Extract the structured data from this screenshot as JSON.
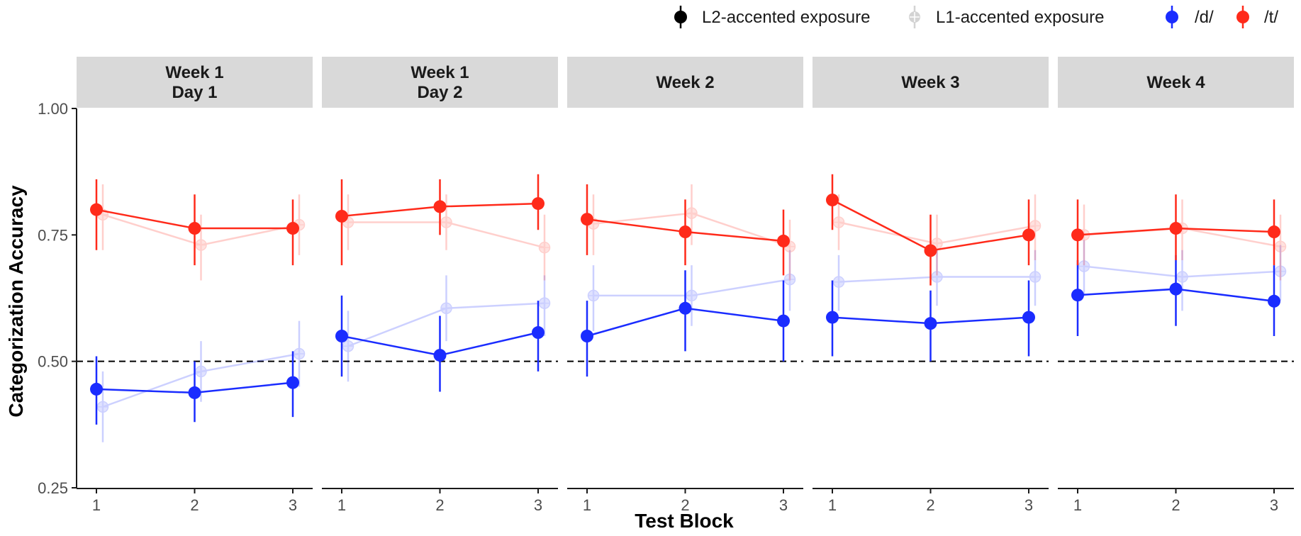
{
  "chart_data": {
    "type": "line",
    "xlabel": "Test Block",
    "ylabel": "Categorization Accuracy",
    "ylim": [
      0.25,
      1.0
    ],
    "yticks": [
      "0.25",
      "0.50",
      "0.75",
      "1.00"
    ],
    "xticks": [
      "1",
      "2",
      "3"
    ],
    "reference_line": 0.5,
    "legend": {
      "position": "top-right",
      "exposure": [
        {
          "label": "L2-accented exposure",
          "color": "#000000",
          "opacity": 1.0
        },
        {
          "label": "L1-accented exposure",
          "color": "#9e9e9e",
          "opacity": 0.45
        }
      ],
      "phoneme": [
        {
          "label": "/d/",
          "color": "#1a2cff"
        },
        {
          "label": "/t/",
          "color": "#ff2a1a"
        }
      ]
    },
    "colors": {
      "d": "#1a2cff",
      "t": "#ff2a1a",
      "strip_bg": "#d9d9d9",
      "axis": "#1a1a1a"
    },
    "panels": [
      {
        "title_lines": [
          "Week 1",
          "Day 1"
        ],
        "series": [
          {
            "exposure": "L1",
            "phoneme": "d",
            "values": [
              0.41,
              0.48,
              0.515
            ],
            "ci": [
              [
                0.34,
                0.48
              ],
              [
                0.42,
                0.54
              ],
              [
                0.45,
                0.58
              ]
            ]
          },
          {
            "exposure": "L1",
            "phoneme": "t",
            "values": [
              0.79,
              0.73,
              0.77
            ],
            "ci": [
              [
                0.72,
                0.85
              ],
              [
                0.66,
                0.79
              ],
              [
                0.71,
                0.83
              ]
            ]
          },
          {
            "exposure": "L2",
            "phoneme": "d",
            "values": [
              0.445,
              0.438,
              0.458
            ],
            "ci": [
              [
                0.375,
                0.51
              ],
              [
                0.38,
                0.5
              ],
              [
                0.39,
                0.52
              ]
            ]
          },
          {
            "exposure": "L2",
            "phoneme": "t",
            "values": [
              0.8,
              0.763,
              0.763
            ],
            "ci": [
              [
                0.72,
                0.86
              ],
              [
                0.69,
                0.83
              ],
              [
                0.69,
                0.82
              ]
            ]
          }
        ]
      },
      {
        "title_lines": [
          "Week 1",
          "Day 2"
        ],
        "series": [
          {
            "exposure": "L1",
            "phoneme": "d",
            "values": [
              0.53,
              0.605,
              0.615
            ],
            "ci": [
              [
                0.46,
                0.6
              ],
              [
                0.54,
                0.67
              ],
              [
                0.55,
                0.67
              ]
            ]
          },
          {
            "exposure": "L1",
            "phoneme": "t",
            "values": [
              0.775,
              0.775,
              0.725
            ],
            "ci": [
              [
                0.72,
                0.83
              ],
              [
                0.72,
                0.83
              ],
              [
                0.66,
                0.79
              ]
            ]
          },
          {
            "exposure": "L2",
            "phoneme": "d",
            "values": [
              0.55,
              0.512,
              0.557
            ],
            "ci": [
              [
                0.47,
                0.63
              ],
              [
                0.44,
                0.59
              ],
              [
                0.48,
                0.62
              ]
            ]
          },
          {
            "exposure": "L2",
            "phoneme": "t",
            "values": [
              0.787,
              0.806,
              0.812
            ],
            "ci": [
              [
                0.69,
                0.86
              ],
              [
                0.75,
                0.86
              ],
              [
                0.76,
                0.87
              ]
            ]
          }
        ]
      },
      {
        "title_lines": [
          "Week 2"
        ],
        "series": [
          {
            "exposure": "L1",
            "phoneme": "d",
            "values": [
              0.63,
              0.63,
              0.662
            ],
            "ci": [
              [
                0.56,
                0.69
              ],
              [
                0.57,
                0.69
              ],
              [
                0.6,
                0.72
              ]
            ]
          },
          {
            "exposure": "L1",
            "phoneme": "t",
            "values": [
              0.772,
              0.793,
              0.727
            ],
            "ci": [
              [
                0.71,
                0.83
              ],
              [
                0.73,
                0.85
              ],
              [
                0.66,
                0.78
              ]
            ]
          },
          {
            "exposure": "L2",
            "phoneme": "d",
            "values": [
              0.55,
              0.605,
              0.58
            ],
            "ci": [
              [
                0.47,
                0.62
              ],
              [
                0.52,
                0.68
              ],
              [
                0.5,
                0.66
              ]
            ]
          },
          {
            "exposure": "L2",
            "phoneme": "t",
            "values": [
              0.781,
              0.756,
              0.738
            ],
            "ci": [
              [
                0.71,
                0.85
              ],
              [
                0.69,
                0.82
              ],
              [
                0.67,
                0.8
              ]
            ]
          }
        ]
      },
      {
        "title_lines": [
          "Week 3"
        ],
        "series": [
          {
            "exposure": "L1",
            "phoneme": "d",
            "values": [
              0.657,
              0.667,
              0.667
            ],
            "ci": [
              [
                0.6,
                0.71
              ],
              [
                0.61,
                0.72
              ],
              [
                0.61,
                0.72
              ]
            ]
          },
          {
            "exposure": "L1",
            "phoneme": "t",
            "values": [
              0.775,
              0.733,
              0.768
            ],
            "ci": [
              [
                0.72,
                0.83
              ],
              [
                0.67,
                0.79
              ],
              [
                0.7,
                0.83
              ]
            ]
          },
          {
            "exposure": "L2",
            "phoneme": "d",
            "values": [
              0.587,
              0.575,
              0.587
            ],
            "ci": [
              [
                0.51,
                0.66
              ],
              [
                0.5,
                0.64
              ],
              [
                0.51,
                0.66
              ]
            ]
          },
          {
            "exposure": "L2",
            "phoneme": "t",
            "values": [
              0.819,
              0.719,
              0.75
            ],
            "ci": [
              [
                0.76,
                0.87
              ],
              [
                0.65,
                0.79
              ],
              [
                0.69,
                0.82
              ]
            ]
          }
        ]
      },
      {
        "title_lines": [
          "Week 4"
        ],
        "series": [
          {
            "exposure": "L1",
            "phoneme": "d",
            "values": [
              0.688,
              0.667,
              0.678
            ],
            "ci": [
              [
                0.63,
                0.74
              ],
              [
                0.6,
                0.72
              ],
              [
                0.62,
                0.73
              ]
            ]
          },
          {
            "exposure": "L1",
            "phoneme": "t",
            "values": [
              0.75,
              0.763,
              0.727
            ],
            "ci": [
              [
                0.69,
                0.81
              ],
              [
                0.7,
                0.82
              ],
              [
                0.66,
                0.79
              ]
            ]
          },
          {
            "exposure": "L2",
            "phoneme": "d",
            "values": [
              0.631,
              0.643,
              0.619
            ],
            "ci": [
              [
                0.55,
                0.7
              ],
              [
                0.57,
                0.71
              ],
              [
                0.55,
                0.69
              ]
            ]
          },
          {
            "exposure": "L2",
            "phoneme": "t",
            "values": [
              0.75,
              0.763,
              0.756
            ],
            "ci": [
              [
                0.69,
                0.82
              ],
              [
                0.7,
                0.83
              ],
              [
                0.69,
                0.82
              ]
            ]
          }
        ]
      }
    ]
  }
}
